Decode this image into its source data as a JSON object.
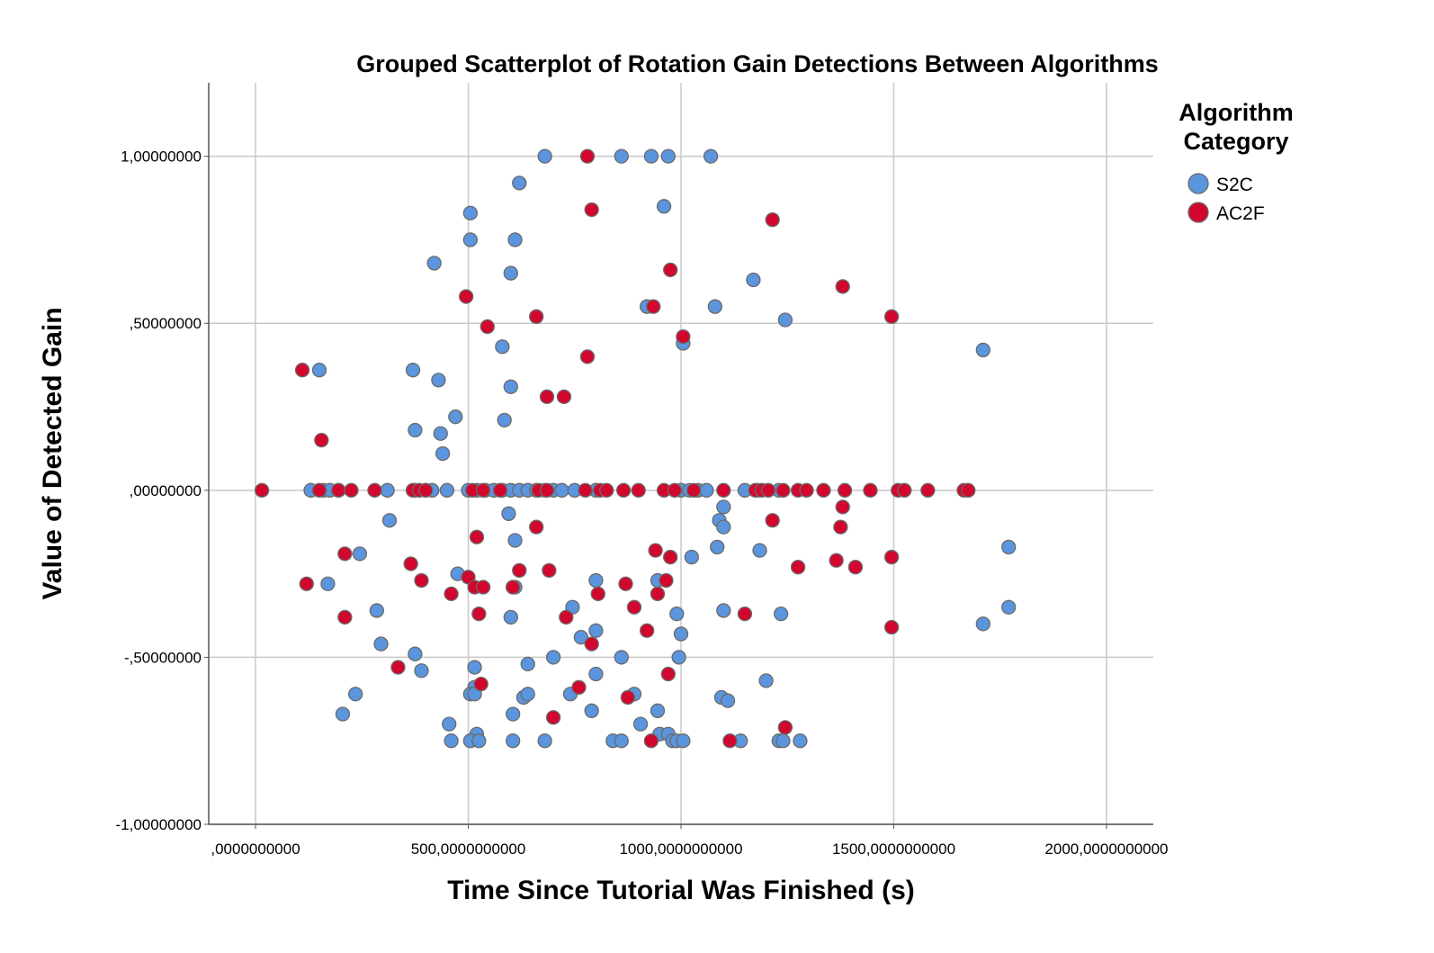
{
  "chart_data": {
    "type": "scatter",
    "title": "Grouped Scatterplot of Rotation Gain Detections Between Algorithms",
    "xlabel": "Time Since Tutorial Was Finished (s)",
    "ylabel": "Value of Detected Gain",
    "xlim": [
      -110,
      2110
    ],
    "ylim": [
      -1,
      1.22
    ],
    "x_ticks": [
      0,
      500,
      1000,
      1500,
      2000
    ],
    "x_tick_labels": [
      ",0000000000",
      "500,0000000000",
      "1000,0000000000",
      "1500,0000000000",
      "2000,0000000000"
    ],
    "y_ticks": [
      1,
      0.5,
      0,
      -0.5,
      -1
    ],
    "y_tick_labels": [
      "1,00000000",
      ",50000000",
      ",00000000",
      "-,50000000",
      "-1,00000000"
    ],
    "grid": true,
    "legend": {
      "title_lines": [
        "Algorithm",
        "Category"
      ],
      "placement": "right"
    },
    "series": [
      {
        "name": "S2C",
        "color": "#5b95de",
        "points": [
          [
            680,
            1.0
          ],
          [
            860,
            1.0
          ],
          [
            930,
            1.0
          ],
          [
            970,
            1.0
          ],
          [
            1070,
            1.0
          ],
          [
            620,
            0.92
          ],
          [
            960,
            0.85
          ],
          [
            505,
            0.83
          ],
          [
            505,
            0.75
          ],
          [
            610,
            0.75
          ],
          [
            420,
            0.68
          ],
          [
            600,
            0.65
          ],
          [
            1170,
            0.63
          ],
          [
            920,
            0.55
          ],
          [
            1080,
            0.55
          ],
          [
            1245,
            0.51
          ],
          [
            1005,
            0.44
          ],
          [
            1710,
            0.42
          ],
          [
            580,
            0.43
          ],
          [
            150,
            0.36
          ],
          [
            370,
            0.36
          ],
          [
            430,
            0.33
          ],
          [
            600,
            0.31
          ],
          [
            470,
            0.22
          ],
          [
            585,
            0.21
          ],
          [
            375,
            0.18
          ],
          [
            435,
            0.17
          ],
          [
            440,
            0.11
          ],
          [
            130,
            0
          ],
          [
            160,
            0
          ],
          [
            175,
            0
          ],
          [
            195,
            0
          ],
          [
            310,
            0
          ],
          [
            375,
            0
          ],
          [
            400,
            0
          ],
          [
            415,
            0
          ],
          [
            450,
            0
          ],
          [
            500,
            0
          ],
          [
            520,
            0
          ],
          [
            540,
            0
          ],
          [
            560,
            0
          ],
          [
            580,
            0
          ],
          [
            600,
            0
          ],
          [
            620,
            0
          ],
          [
            640,
            0
          ],
          [
            660,
            0
          ],
          [
            680,
            0
          ],
          [
            700,
            0
          ],
          [
            720,
            0
          ],
          [
            750,
            0
          ],
          [
            800,
            0
          ],
          [
            1000,
            0
          ],
          [
            1020,
            0
          ],
          [
            1040,
            0
          ],
          [
            1060,
            0
          ],
          [
            1150,
            0
          ],
          [
            1180,
            0
          ],
          [
            1230,
            0
          ],
          [
            595,
            -0.07
          ],
          [
            1100,
            -0.05
          ],
          [
            1090,
            -0.09
          ],
          [
            1100,
            -0.11
          ],
          [
            315,
            -0.09
          ],
          [
            610,
            -0.15
          ],
          [
            1085,
            -0.17
          ],
          [
            1770,
            -0.17
          ],
          [
            1025,
            -0.2
          ],
          [
            1185,
            -0.18
          ],
          [
            245,
            -0.19
          ],
          [
            475,
            -0.25
          ],
          [
            800,
            -0.27
          ],
          [
            945,
            -0.27
          ],
          [
            170,
            -0.28
          ],
          [
            605,
            -0.29
          ],
          [
            610,
            -0.29
          ],
          [
            285,
            -0.36
          ],
          [
            745,
            -0.35
          ],
          [
            1100,
            -0.36
          ],
          [
            1235,
            -0.37
          ],
          [
            1770,
            -0.35
          ],
          [
            600,
            -0.38
          ],
          [
            990,
            -0.37
          ],
          [
            1710,
            -0.4
          ],
          [
            800,
            -0.42
          ],
          [
            1000,
            -0.43
          ],
          [
            765,
            -0.44
          ],
          [
            295,
            -0.46
          ],
          [
            375,
            -0.49
          ],
          [
            860,
            -0.5
          ],
          [
            995,
            -0.5
          ],
          [
            700,
            -0.5
          ],
          [
            640,
            -0.52
          ],
          [
            390,
            -0.54
          ],
          [
            515,
            -0.53
          ],
          [
            800,
            -0.55
          ],
          [
            1200,
            -0.57
          ],
          [
            515,
            -0.59
          ],
          [
            505,
            -0.61
          ],
          [
            515,
            -0.61
          ],
          [
            235,
            -0.61
          ],
          [
            630,
            -0.62
          ],
          [
            640,
            -0.61
          ],
          [
            740,
            -0.61
          ],
          [
            890,
            -0.61
          ],
          [
            1095,
            -0.62
          ],
          [
            1110,
            -0.63
          ],
          [
            205,
            -0.67
          ],
          [
            605,
            -0.67
          ],
          [
            790,
            -0.66
          ],
          [
            945,
            -0.66
          ],
          [
            455,
            -0.7
          ],
          [
            905,
            -0.7
          ],
          [
            520,
            -0.73
          ],
          [
            460,
            -0.75
          ],
          [
            505,
            -0.75
          ],
          [
            525,
            -0.75
          ],
          [
            605,
            -0.75
          ],
          [
            680,
            -0.75
          ],
          [
            840,
            -0.75
          ],
          [
            860,
            -0.75
          ],
          [
            950,
            -0.73
          ],
          [
            970,
            -0.73
          ],
          [
            980,
            -0.75
          ],
          [
            990,
            -0.75
          ],
          [
            1005,
            -0.75
          ],
          [
            1140,
            -0.75
          ],
          [
            1230,
            -0.75
          ],
          [
            1240,
            -0.75
          ],
          [
            1280,
            -0.75
          ]
        ]
      },
      {
        "name": "AC2F",
        "color": "#d2072e",
        "points": [
          [
            780,
            1.0
          ],
          [
            790,
            0.84
          ],
          [
            1215,
            0.81
          ],
          [
            975,
            0.66
          ],
          [
            1380,
            0.61
          ],
          [
            495,
            0.58
          ],
          [
            935,
            0.55
          ],
          [
            1495,
            0.52
          ],
          [
            660,
            0.52
          ],
          [
            545,
            0.49
          ],
          [
            1005,
            0.46
          ],
          [
            780,
            0.4
          ],
          [
            110,
            0.36
          ],
          [
            685,
            0.28
          ],
          [
            725,
            0.28
          ],
          [
            155,
            0.15
          ],
          [
            15,
            0
          ],
          [
            150,
            0
          ],
          [
            195,
            0
          ],
          [
            225,
            0
          ],
          [
            280,
            0
          ],
          [
            370,
            0
          ],
          [
            385,
            0
          ],
          [
            400,
            0
          ],
          [
            510,
            0
          ],
          [
            535,
            0
          ],
          [
            575,
            0
          ],
          [
            665,
            0
          ],
          [
            685,
            0
          ],
          [
            775,
            0
          ],
          [
            810,
            0
          ],
          [
            825,
            0
          ],
          [
            865,
            0
          ],
          [
            900,
            0
          ],
          [
            960,
            0
          ],
          [
            985,
            0
          ],
          [
            1030,
            0
          ],
          [
            1100,
            0
          ],
          [
            1175,
            0
          ],
          [
            1190,
            0
          ],
          [
            1205,
            0
          ],
          [
            1240,
            0
          ],
          [
            1275,
            0
          ],
          [
            1295,
            0
          ],
          [
            1335,
            0
          ],
          [
            1385,
            0
          ],
          [
            1445,
            0
          ],
          [
            1510,
            0
          ],
          [
            1525,
            0
          ],
          [
            1580,
            0
          ],
          [
            1665,
            0
          ],
          [
            1675,
            0
          ],
          [
            1380,
            -0.05
          ],
          [
            660,
            -0.11
          ],
          [
            1375,
            -0.11
          ],
          [
            1215,
            -0.09
          ],
          [
            520,
            -0.14
          ],
          [
            940,
            -0.18
          ],
          [
            210,
            -0.19
          ],
          [
            975,
            -0.2
          ],
          [
            1495,
            -0.2
          ],
          [
            1365,
            -0.21
          ],
          [
            365,
            -0.22
          ],
          [
            1410,
            -0.23
          ],
          [
            1275,
            -0.23
          ],
          [
            620,
            -0.24
          ],
          [
            690,
            -0.24
          ],
          [
            500,
            -0.26
          ],
          [
            390,
            -0.27
          ],
          [
            120,
            -0.28
          ],
          [
            870,
            -0.28
          ],
          [
            965,
            -0.27
          ],
          [
            515,
            -0.29
          ],
          [
            535,
            -0.29
          ],
          [
            605,
            -0.29
          ],
          [
            460,
            -0.31
          ],
          [
            805,
            -0.31
          ],
          [
            945,
            -0.31
          ],
          [
            890,
            -0.35
          ],
          [
            525,
            -0.37
          ],
          [
            1150,
            -0.37
          ],
          [
            210,
            -0.38
          ],
          [
            730,
            -0.38
          ],
          [
            920,
            -0.42
          ],
          [
            1495,
            -0.41
          ],
          [
            790,
            -0.46
          ],
          [
            335,
            -0.53
          ],
          [
            530,
            -0.58
          ],
          [
            970,
            -0.55
          ],
          [
            760,
            -0.59
          ],
          [
            875,
            -0.62
          ],
          [
            700,
            -0.68
          ],
          [
            1245,
            -0.71
          ],
          [
            930,
            -0.75
          ],
          [
            1115,
            -0.75
          ]
        ]
      }
    ]
  }
}
